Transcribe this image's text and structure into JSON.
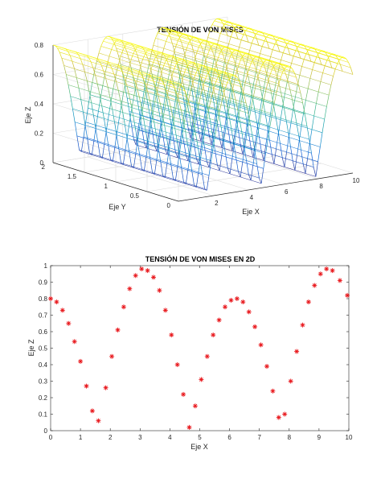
{
  "chart_data": [
    {
      "type": "surface",
      "title": "TENSIÓN DE VON MISES",
      "xlabel": "Eje X",
      "ylabel": "Eje Y",
      "zlabel": "Eje Z",
      "xlim": [
        0,
        10
      ],
      "ylim": [
        0,
        2
      ],
      "zlim": [
        0,
        0.8
      ],
      "x_ticks": [
        "2",
        "4",
        "6",
        "8",
        "10"
      ],
      "y_ticks": [
        "0",
        "0.5",
        "1",
        "1.5",
        "2"
      ],
      "z_ticks": [
        "0",
        "0.2",
        "0.4",
        "0.6",
        "0.8"
      ],
      "function": "z = abs(cos(x)) * 0.8, constant along y",
      "colormap": "parula",
      "grid": true
    },
    {
      "type": "scatter",
      "title": "TENSIÓN DE VON MISES EN 2D",
      "xlabel": "Eje X",
      "ylabel": "Eje Z",
      "xlim": [
        0,
        10
      ],
      "ylim": [
        0,
        1
      ],
      "x_ticks": [
        "0",
        "1",
        "2",
        "3",
        "4",
        "5",
        "6",
        "7",
        "8",
        "9",
        "10"
      ],
      "y_ticks": [
        "0",
        "0.1",
        "0.2",
        "0.3",
        "0.4",
        "0.5",
        "0.6",
        "0.7",
        "0.8",
        "0.9",
        "1"
      ],
      "marker": "*",
      "marker_color": "#e8161b",
      "grid": false,
      "points": [
        [
          0.0,
          0.8
        ],
        [
          0.2,
          0.78
        ],
        [
          0.4,
          0.73
        ],
        [
          0.6,
          0.65
        ],
        [
          0.8,
          0.54
        ],
        [
          1.0,
          0.42
        ],
        [
          1.2,
          0.27
        ],
        [
          1.4,
          0.12
        ],
        [
          1.6,
          0.06
        ],
        [
          1.85,
          0.26
        ],
        [
          2.05,
          0.45
        ],
        [
          2.25,
          0.61
        ],
        [
          2.45,
          0.75
        ],
        [
          2.65,
          0.86
        ],
        [
          2.85,
          0.94
        ],
        [
          3.05,
          0.98
        ],
        [
          3.25,
          0.97
        ],
        [
          3.45,
          0.93
        ],
        [
          3.65,
          0.85
        ],
        [
          3.85,
          0.73
        ],
        [
          4.05,
          0.58
        ],
        [
          4.25,
          0.4
        ],
        [
          4.45,
          0.22
        ],
        [
          4.65,
          0.02
        ],
        [
          4.85,
          0.15
        ],
        [
          5.05,
          0.31
        ],
        [
          5.25,
          0.45
        ],
        [
          5.45,
          0.58
        ],
        [
          5.65,
          0.67
        ],
        [
          5.85,
          0.75
        ],
        [
          6.05,
          0.79
        ],
        [
          6.25,
          0.8
        ],
        [
          6.45,
          0.78
        ],
        [
          6.65,
          0.72
        ],
        [
          6.85,
          0.63
        ],
        [
          7.05,
          0.52
        ],
        [
          7.25,
          0.39
        ],
        [
          7.45,
          0.24
        ],
        [
          7.65,
          0.08
        ],
        [
          7.85,
          0.1
        ],
        [
          8.05,
          0.3
        ],
        [
          8.25,
          0.48
        ],
        [
          8.45,
          0.64
        ],
        [
          8.65,
          0.78
        ],
        [
          8.85,
          0.88
        ],
        [
          9.05,
          0.95
        ],
        [
          9.25,
          0.98
        ],
        [
          9.45,
          0.97
        ],
        [
          9.7,
          0.91
        ],
        [
          9.95,
          0.82
        ]
      ]
    }
  ]
}
